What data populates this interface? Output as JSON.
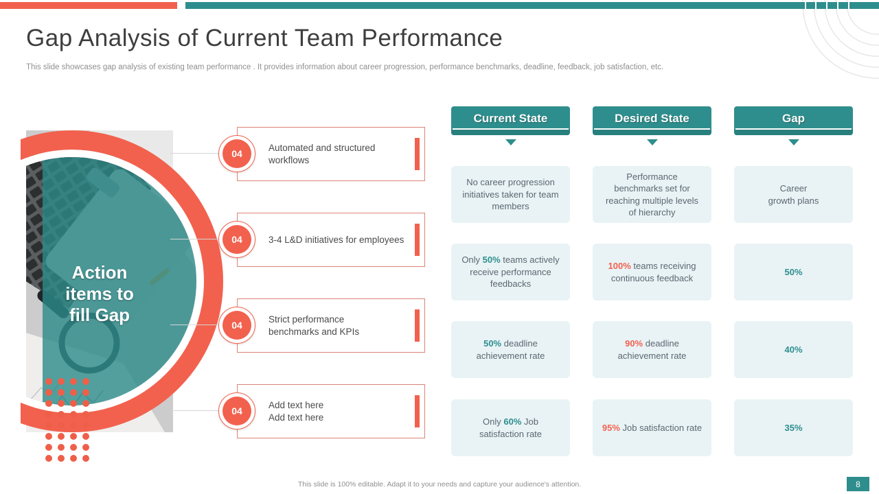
{
  "slide": {
    "title": "Gap Analysis of Current Team Performance",
    "subtitle": "This slide showcases gap analysis of existing team performance . It provides information about career progression, performance benchmarks, deadline, feedback, job satisfaction, etc.",
    "footer": "This slide is 100% editable. Adapt it to your needs and capture your audience's attention.",
    "page_number": "8"
  },
  "colors": {
    "accent_coral": "#F2614E",
    "accent_teal": "#2E8E8D",
    "cell_background": "#E9F3F6"
  },
  "left_graphic": {
    "overlay_text": "Action\nitems to\nfill Gap"
  },
  "action_items": [
    {
      "badge": "04",
      "text": "Automated and structured workflows"
    },
    {
      "badge": "04",
      "text": "3-4 L&D initiatives for employees"
    },
    {
      "badge": "04",
      "text": "Strict performance\nbenchmarks and KPIs"
    },
    {
      "badge": "04",
      "text": "Add text here\nAdd text here"
    }
  ],
  "comparison": {
    "columns": [
      {
        "header": "Current State",
        "cells": [
          {
            "segments": [
              {
                "text": "No career progression initiatives taken for team members"
              }
            ]
          },
          {
            "segments": [
              {
                "text": "Only "
              },
              {
                "text": "50%",
                "emphasis": "teal"
              },
              {
                "text": " teams actively receive performance feedbacks"
              }
            ]
          },
          {
            "segments": [
              {
                "text": "50%",
                "emphasis": "teal"
              },
              {
                "text": " deadline achievement rate"
              }
            ]
          },
          {
            "segments": [
              {
                "text": "Only "
              },
              {
                "text": "60%",
                "emphasis": "teal"
              },
              {
                "text": " Job satisfaction rate"
              }
            ]
          }
        ]
      },
      {
        "header": "Desired State",
        "cells": [
          {
            "segments": [
              {
                "text": "Performance benchmarks set for reaching multiple levels of hierarchy"
              }
            ]
          },
          {
            "segments": [
              {
                "text": "100%",
                "emphasis": "coral"
              },
              {
                "text": " teams receiving continuous feedback"
              }
            ]
          },
          {
            "segments": [
              {
                "text": "90%",
                "emphasis": "coral"
              },
              {
                "text": " deadline achievement rate"
              }
            ]
          },
          {
            "segments": [
              {
                "text": "95%",
                "emphasis": "coral"
              },
              {
                "text": " Job satisfaction rate"
              }
            ]
          }
        ]
      },
      {
        "header": "Gap",
        "cells": [
          {
            "segments": [
              {
                "text": "Career\ngrowth plans"
              }
            ]
          },
          {
            "segments": [
              {
                "text": "50%",
                "emphasis": "teal"
              }
            ]
          },
          {
            "segments": [
              {
                "text": "40%",
                "emphasis": "teal"
              }
            ]
          },
          {
            "segments": [
              {
                "text": "35%",
                "emphasis": "teal"
              }
            ]
          }
        ]
      }
    ]
  }
}
